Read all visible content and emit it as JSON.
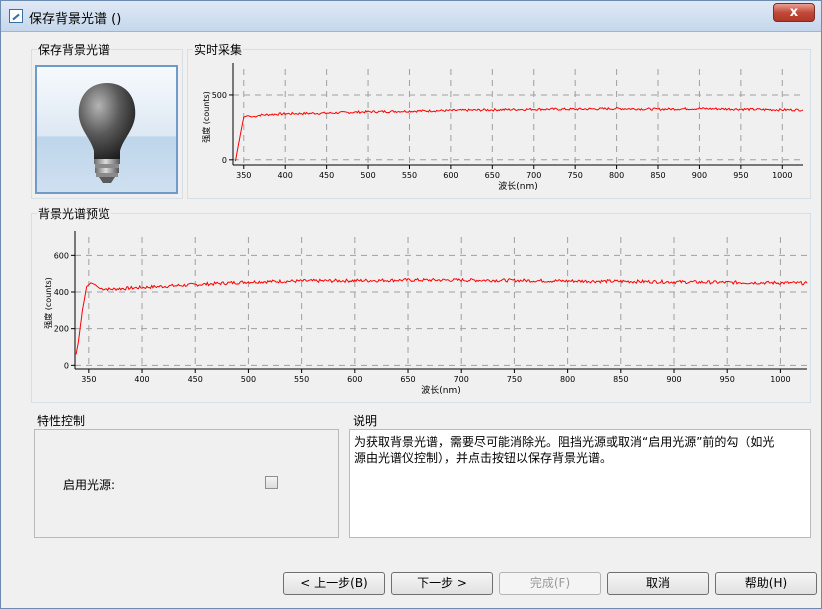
{
  "window": {
    "title": "保存背景光谱 ()",
    "close_label": "x"
  },
  "groups": {
    "save_bg": "保存背景光谱",
    "realtime": "实时采集",
    "preview": "背景光谱预览",
    "properties": "特性控制",
    "description": "说明"
  },
  "properties": {
    "enable_light_label": "启用光源:",
    "enable_light_checked": false
  },
  "description": {
    "line1": "为获取背景光谱，需要尽可能消除光。阻挡光源或取消“启用光源”前的勾（如光",
    "line2": "源由光谱仪控制），并点击按钮以保存背景光谱。"
  },
  "buttons": {
    "back": "< 上一步(B)",
    "next": "下一步 >",
    "finish": "完成(F)",
    "cancel": "取消",
    "help": "帮助(H)"
  },
  "colors": {
    "trace": "#ff0000",
    "grid": "#a0a0a0"
  },
  "chart_data": [
    {
      "type": "line",
      "name": "realtime",
      "xlabel": "波长(nm)",
      "ylabel": "强度 (counts)",
      "xlim": [
        337,
        1025
      ],
      "ylim": [
        -40,
        700
      ],
      "xticks": [
        350,
        400,
        450,
        500,
        550,
        600,
        650,
        700,
        750,
        800,
        850,
        900,
        950,
        1000
      ],
      "yticks": [
        0,
        500
      ],
      "series": [
        {
          "x": [
            340,
            342,
            346,
            350,
            355,
            360,
            370,
            400,
            450,
            500,
            550,
            600,
            650,
            700,
            750,
            800,
            850,
            900,
            950,
            1000,
            1025
          ],
          "y": [
            -10,
            60,
            200,
            330,
            340,
            330,
            345,
            355,
            360,
            370,
            375,
            380,
            385,
            390,
            390,
            395,
            390,
            395,
            390,
            385,
            385
          ]
        }
      ]
    },
    {
      "type": "line",
      "name": "preview",
      "xlabel": "波长(nm)",
      "ylabel": "强度 (counts)",
      "xlim": [
        337,
        1025
      ],
      "ylim": [
        -20,
        700
      ],
      "xticks": [
        350,
        400,
        450,
        500,
        550,
        600,
        650,
        700,
        750,
        800,
        850,
        900,
        950,
        1000
      ],
      "yticks": [
        0,
        200,
        400,
        600
      ],
      "series": [
        {
          "x": [
            338,
            340,
            344,
            348,
            352,
            356,
            360,
            370,
            400,
            450,
            500,
            550,
            600,
            650,
            700,
            750,
            800,
            850,
            900,
            950,
            1000,
            1025
          ],
          "y": [
            60,
            120,
            300,
            430,
            450,
            440,
            420,
            415,
            425,
            440,
            455,
            460,
            462,
            465,
            465,
            463,
            460,
            458,
            455,
            452,
            450,
            448
          ]
        }
      ]
    }
  ]
}
